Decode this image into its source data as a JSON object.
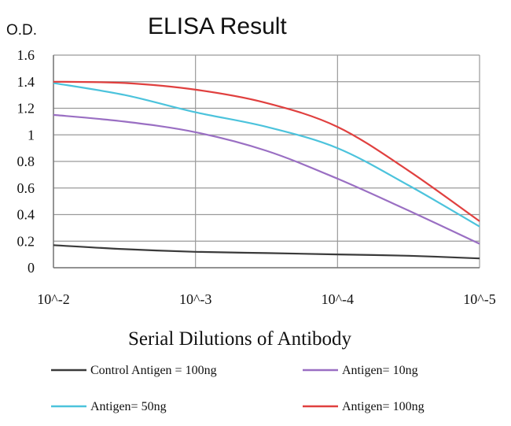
{
  "chart_data": {
    "type": "line",
    "title": "ELISA Result",
    "ylabel": "O.D.",
    "xlabel": "Serial Dilutions of Antibody",
    "categories": [
      "10^-2",
      "10^-3",
      "10^-4",
      "10^-5"
    ],
    "y_ticks": [
      "0",
      "0.2",
      "0.4",
      "0.6",
      "0.8",
      "1",
      "1.2",
      "1.4",
      "1.6"
    ],
    "ylim": [
      0,
      1.6
    ],
    "grid": true,
    "legend_position": "bottom",
    "x": [
      0,
      0.5,
      1,
      1.5,
      2,
      2.5,
      3
    ],
    "series": [
      {
        "name": "Control Antigen = 100ng",
        "color": "#3a3a3a",
        "values": [
          0.17,
          0.14,
          0.12,
          0.11,
          0.1,
          0.09,
          0.07
        ]
      },
      {
        "name": "Antigen= 10ng",
        "color": "#9a6fc3",
        "values": [
          1.15,
          1.1,
          1.02,
          0.88,
          0.67,
          0.43,
          0.18
        ]
      },
      {
        "name": "Antigen= 50ng",
        "color": "#4cc3dc",
        "values": [
          1.39,
          1.3,
          1.17,
          1.06,
          0.9,
          0.62,
          0.31
        ]
      },
      {
        "name": "Antigen= 100ng",
        "color": "#e0403f",
        "values": [
          1.4,
          1.39,
          1.34,
          1.24,
          1.06,
          0.73,
          0.35
        ]
      }
    ]
  }
}
